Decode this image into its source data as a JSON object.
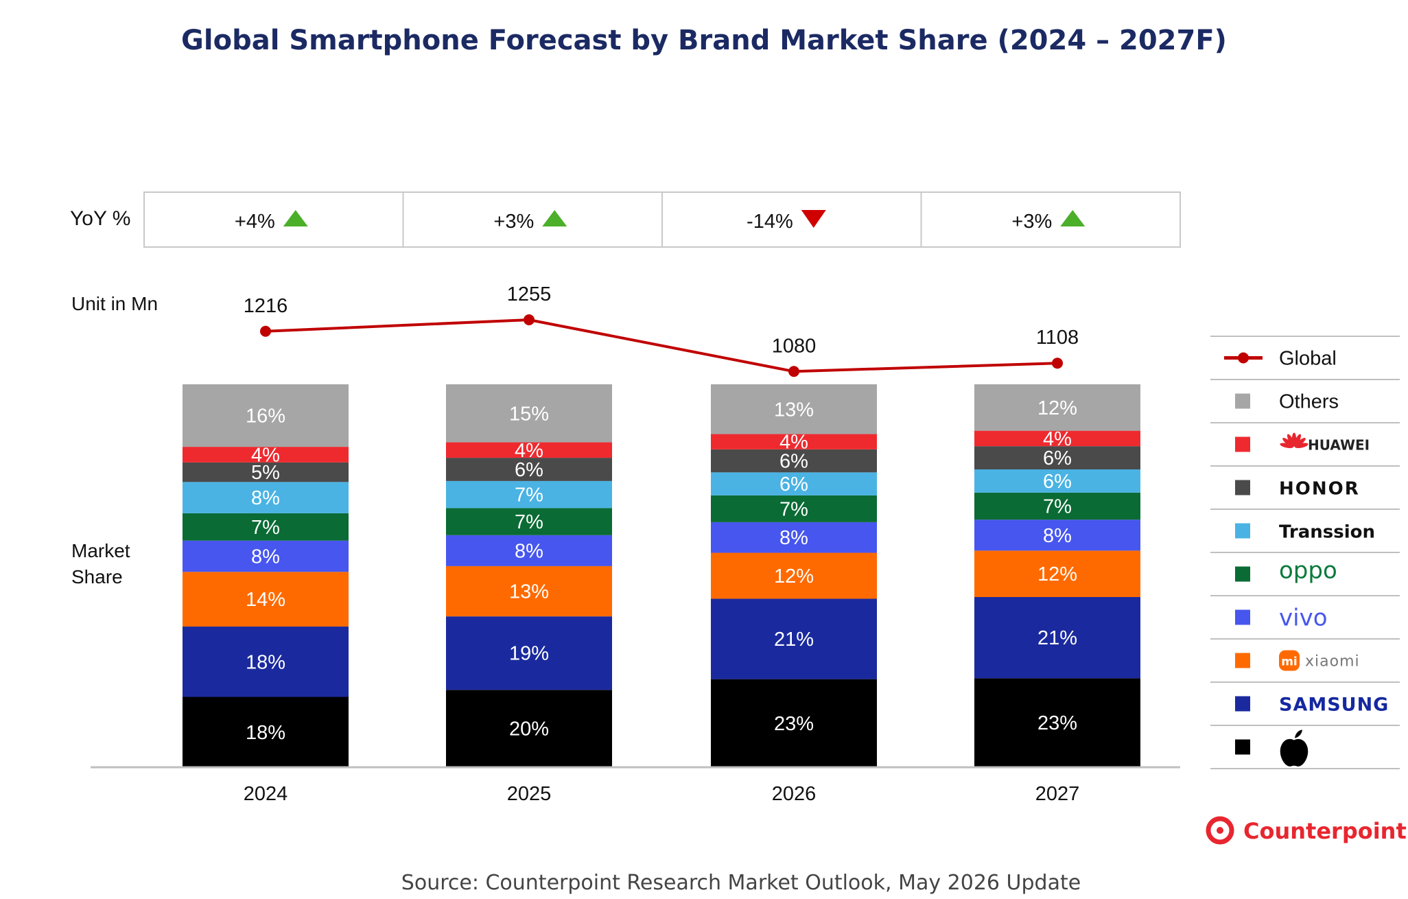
{
  "title": "Global Smartphone Forecast by Brand Market Share (2024 – 2027F)",
  "labels": {
    "yoy": "YoY %",
    "units": "Unit in Mn",
    "share_line1": "Market",
    "share_line2": "Share"
  },
  "source": "Source: Counterpoint Research Market Outlook, May 2026 Update",
  "logo": "Counterpoint",
  "chart_data": {
    "type": "bar",
    "stacked": true,
    "categories": [
      "2024",
      "2025",
      "2026",
      "2027"
    ],
    "yoy": [
      {
        "text": "+4%",
        "direction": "up"
      },
      {
        "text": "+3%",
        "direction": "up"
      },
      {
        "text": "-14%",
        "direction": "down"
      },
      {
        "text": "+3%",
        "direction": "up"
      }
    ],
    "global_units": {
      "name": "Global",
      "values": [
        1216,
        1255,
        1080,
        1108
      ],
      "color": "#c00000"
    },
    "series": [
      {
        "name": "Others",
        "color": "#a6a6a6",
        "values": [
          16,
          15,
          13,
          12
        ]
      },
      {
        "name": "HUAWEI",
        "color": "#ee2a2f",
        "values": [
          4,
          4,
          4,
          4
        ]
      },
      {
        "name": "HONOR",
        "color": "#4a4a4a",
        "values": [
          5,
          6,
          6,
          6
        ]
      },
      {
        "name": "Transsion",
        "color": "#4ab3e3",
        "values": [
          8,
          7,
          6,
          6
        ]
      },
      {
        "name": "oppo",
        "color": "#0a6b34",
        "values": [
          7,
          7,
          7,
          7
        ]
      },
      {
        "name": "vivo",
        "color": "#4756ee",
        "values": [
          8,
          8,
          8,
          8
        ]
      },
      {
        "name": "xiaomi",
        "color": "#ff6a00",
        "values": [
          14,
          13,
          12,
          12
        ]
      },
      {
        "name": "SAMSUNG",
        "color": "#1a2a9e",
        "values": [
          18,
          19,
          21,
          21
        ]
      },
      {
        "name": "Apple",
        "color": "#000000",
        "values": [
          18,
          20,
          23,
          23
        ]
      }
    ],
    "legend_position": "right",
    "grid": false
  }
}
